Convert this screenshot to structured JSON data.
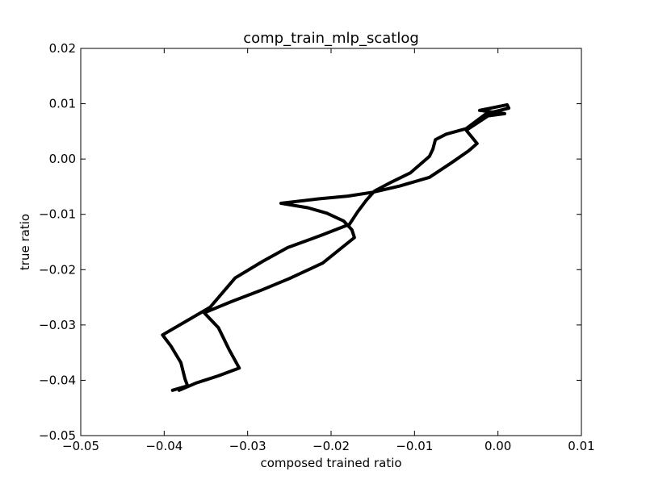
{
  "chart_data": {
    "type": "line",
    "title": "comp_train_mlp_scatlog",
    "xlabel": "composed trained ratio",
    "ylabel": "true ratio",
    "xlim": [
      -0.05,
      0.01
    ],
    "ylim": [
      -0.05,
      0.02
    ],
    "xticks": [
      -0.05,
      -0.04,
      -0.03,
      -0.02,
      -0.01,
      0.0,
      0.01
    ],
    "yticks": [
      -0.05,
      -0.04,
      -0.03,
      -0.02,
      -0.01,
      0.0,
      0.01,
      0.02
    ],
    "xtick_labels": [
      "−0.05",
      "−0.04",
      "−0.03",
      "−0.02",
      "−0.01",
      "0.00",
      "0.01"
    ],
    "ytick_labels": [
      "−0.05",
      "−0.04",
      "−0.03",
      "−0.02",
      "−0.01",
      "0.00",
      "0.01",
      "0.02"
    ],
    "grid": false,
    "legend": "none",
    "line_color": "#000000",
    "series": [
      {
        "points": [
          [
            -0.0382,
            -0.0418
          ],
          [
            -0.0362,
            -0.0405
          ],
          [
            -0.0335,
            -0.0392
          ],
          [
            -0.031,
            -0.0378
          ],
          [
            -0.0322,
            -0.0345
          ],
          [
            -0.0335,
            -0.0305
          ],
          [
            -0.0352,
            -0.0278
          ],
          [
            -0.032,
            -0.0258
          ],
          [
            -0.0285,
            -0.0238
          ],
          [
            -0.025,
            -0.0216
          ],
          [
            -0.021,
            -0.0188
          ],
          [
            -0.0172,
            -0.0142
          ],
          [
            -0.0175,
            -0.0128
          ],
          [
            -0.0185,
            -0.0112
          ],
          [
            -0.0205,
            -0.0098
          ],
          [
            -0.0228,
            -0.0088
          ],
          [
            -0.026,
            -0.008
          ],
          [
            -0.0215,
            -0.0072
          ],
          [
            -0.018,
            -0.0067
          ],
          [
            -0.015,
            -0.006
          ],
          [
            -0.0118,
            -0.0049
          ],
          [
            -0.0082,
            -0.0033
          ],
          [
            -0.0055,
            -0.0006
          ],
          [
            -0.0035,
            0.0015
          ],
          [
            -0.0025,
            0.0028
          ],
          [
            -0.0038,
            0.0052
          ],
          [
            -0.0012,
            0.0078
          ],
          [
            0.0008,
            0.0082
          ],
          [
            -0.0022,
            0.0088
          ],
          [
            0.0011,
            0.0098
          ],
          [
            0.0013,
            0.0092
          ],
          [
            -0.0014,
            0.0082
          ],
          [
            -0.0038,
            0.0055
          ],
          [
            -0.0062,
            0.0045
          ],
          [
            -0.0075,
            0.0035
          ],
          [
            -0.0078,
            0.0018
          ],
          [
            -0.0082,
            0.0005
          ],
          [
            -0.0105,
            -0.0025
          ],
          [
            -0.0128,
            -0.0042
          ],
          [
            -0.0148,
            -0.0058
          ],
          [
            -0.0158,
            -0.0075
          ],
          [
            -0.0168,
            -0.0095
          ],
          [
            -0.0178,
            -0.0118
          ],
          [
            -0.0212,
            -0.0138
          ],
          [
            -0.0252,
            -0.016
          ],
          [
            -0.0282,
            -0.0185
          ],
          [
            -0.0315,
            -0.0215
          ],
          [
            -0.0345,
            -0.0268
          ],
          [
            -0.037,
            -0.029
          ],
          [
            -0.0402,
            -0.0318
          ],
          [
            -0.0392,
            -0.0338
          ],
          [
            -0.038,
            -0.0368
          ],
          [
            -0.0375,
            -0.0398
          ],
          [
            -0.0372,
            -0.041
          ],
          [
            -0.039,
            -0.0418
          ]
        ]
      }
    ]
  }
}
